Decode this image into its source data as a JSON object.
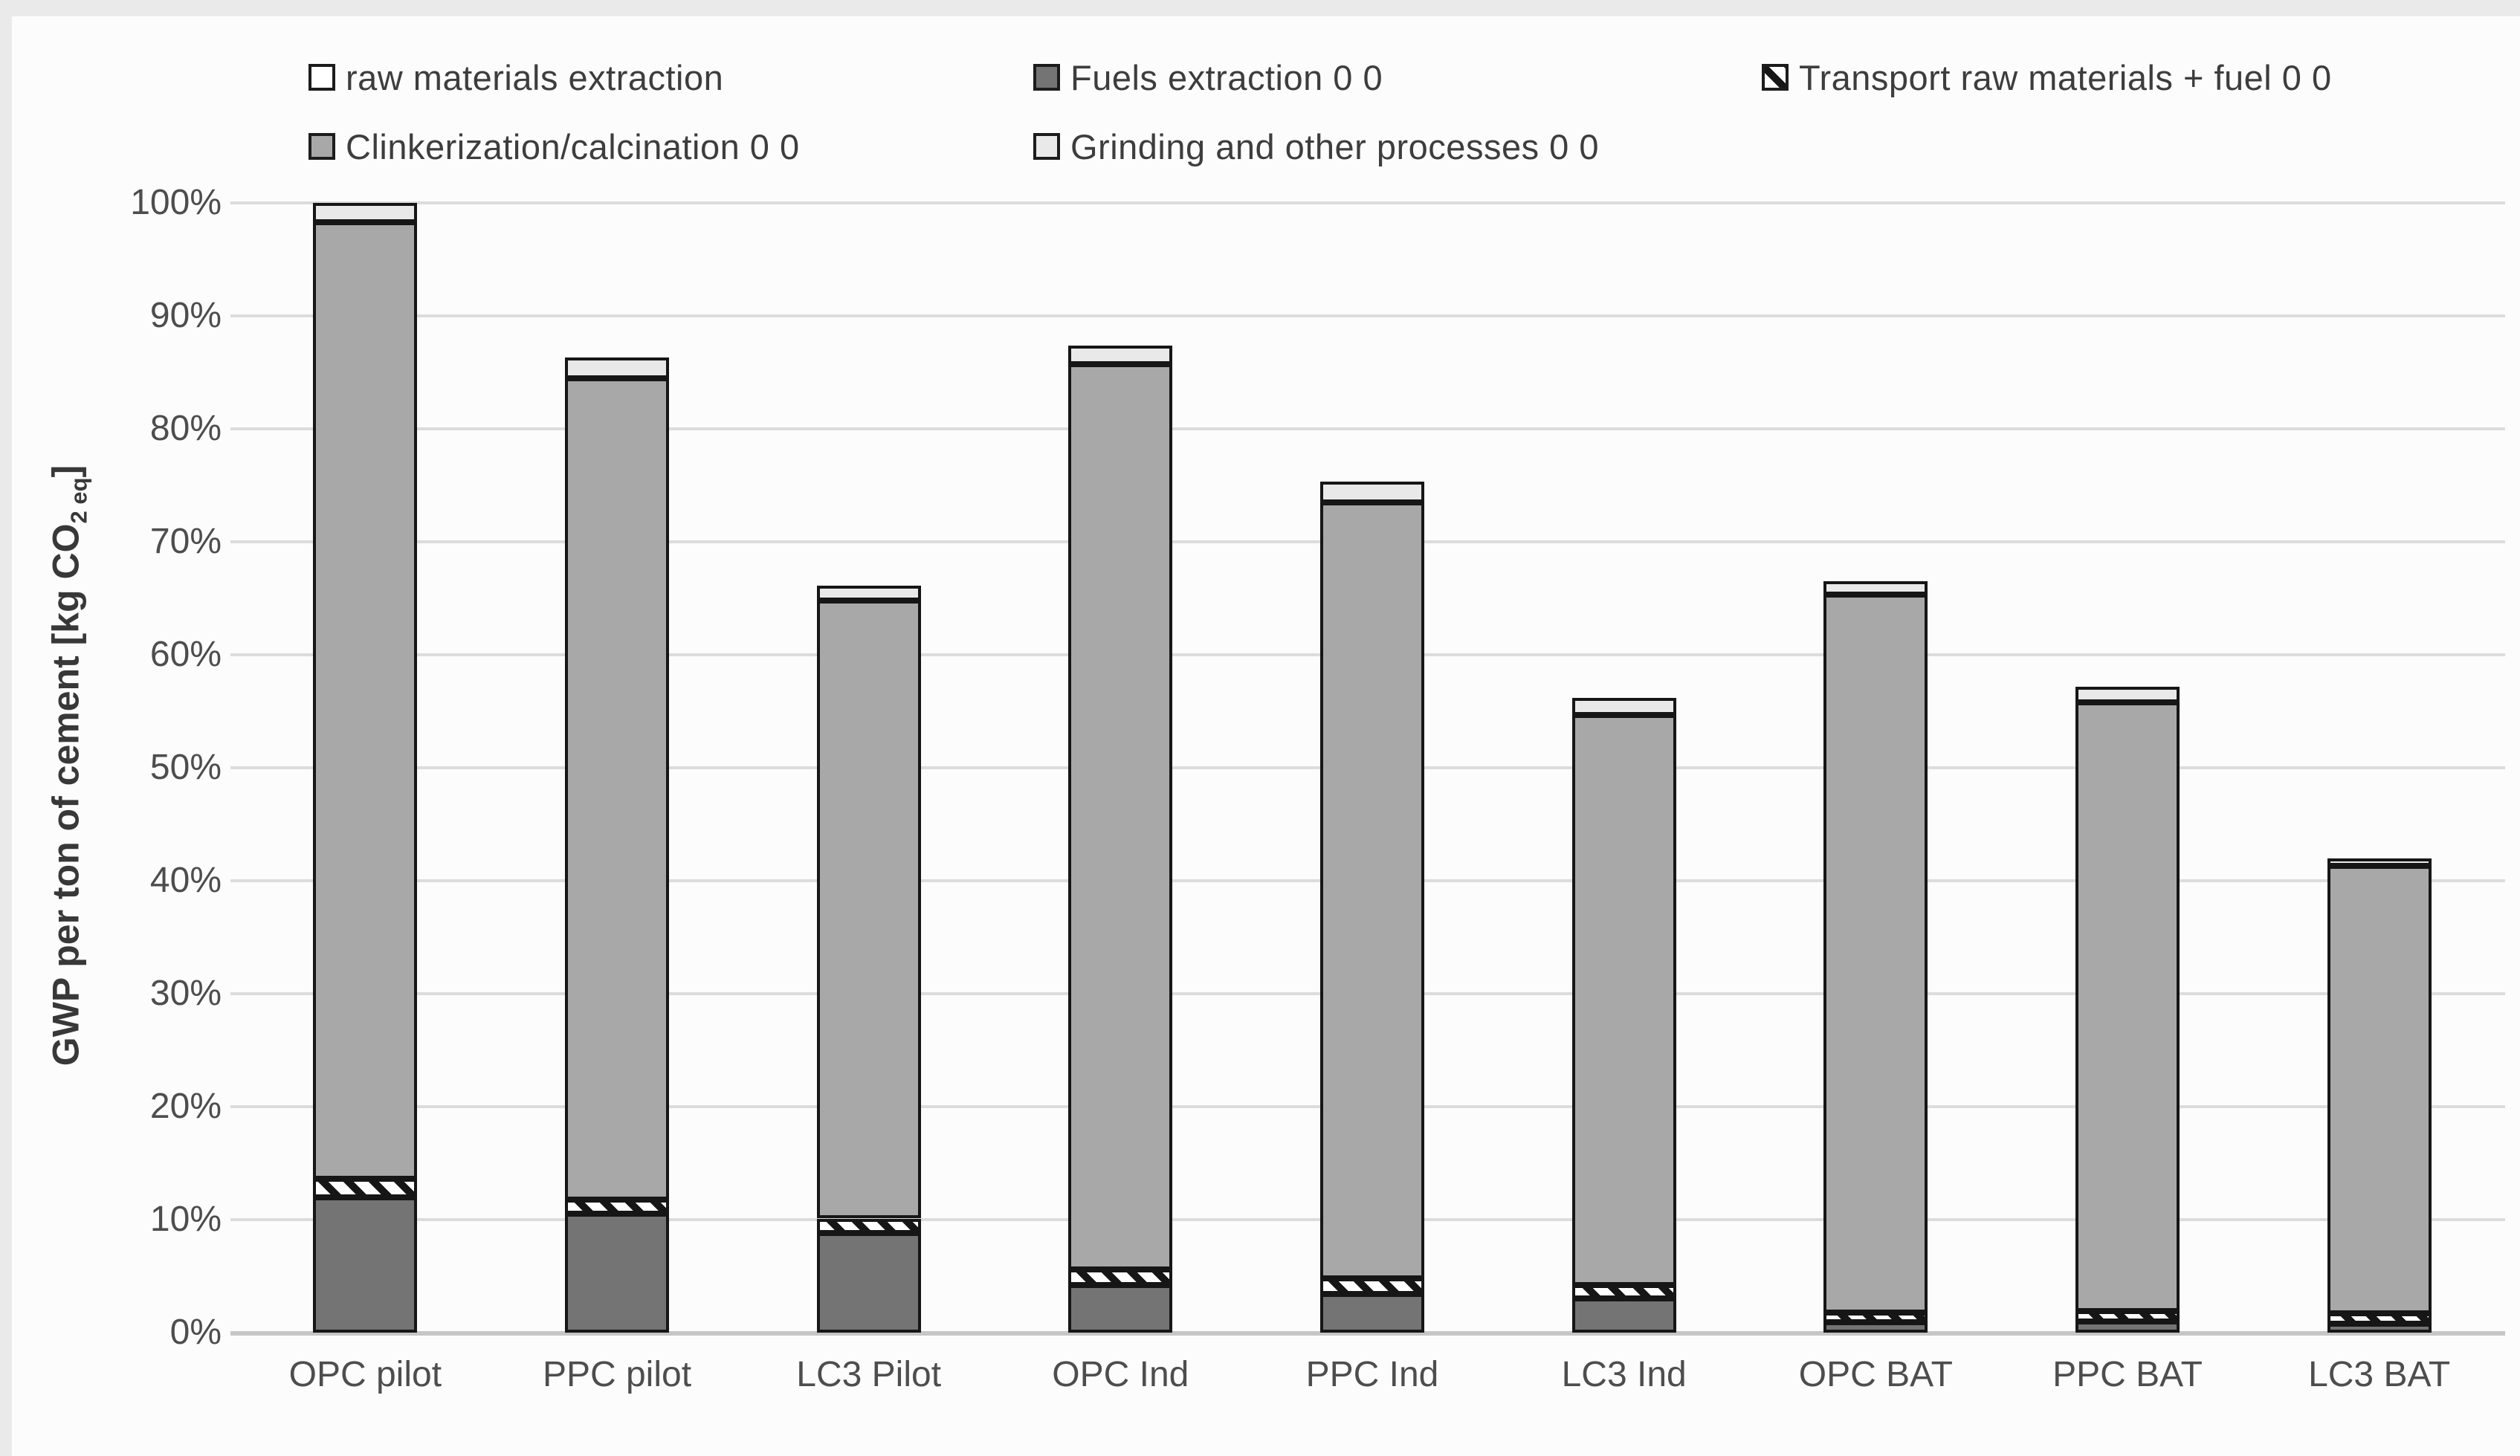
{
  "figure": {
    "background": "#fcfcfc",
    "outline_color": "#161616",
    "gridline_color": "#dcdcdc",
    "baseline_color": "#c6c6c6",
    "tick_text_color": "#4d4d4d",
    "legend_text_color": "#3d3d3d"
  },
  "axis": {
    "y_title_prefix": "GWP per ton of cement [kg CO",
    "y_title_sub": "2 eq",
    "y_title_suffix": "]",
    "y_ticks": [
      "100%",
      "90%",
      "80%",
      "70%",
      "60%",
      "50%",
      "40%",
      "30%",
      "20%",
      "10%",
      "0%"
    ]
  },
  "legend": {
    "rows": [
      72,
      165
    ],
    "cols": [
      415,
      1390,
      2370
    ],
    "items": [
      {
        "label": "raw materials extraction",
        "swatch": "raw",
        "row": 0,
        "col": 0
      },
      {
        "label": "Fuels extraction 0 0",
        "swatch": "fuels",
        "row": 0,
        "col": 1
      },
      {
        "label": "Transport raw materials + fuel 0 0",
        "swatch": "transport",
        "row": 0,
        "col": 2
      },
      {
        "label": "Clinkerization/calcination 0 0",
        "swatch": "clinker",
        "row": 1,
        "col": 0
      },
      {
        "label": "Grinding and other processes 0 0",
        "swatch": "grinding",
        "row": 1,
        "col": 1
      }
    ]
  },
  "chart_data": {
    "type": "bar",
    "stacked": true,
    "title": "",
    "xlabel": "",
    "ylabel": "GWP per ton of cement [kg CO2 eq]",
    "ylim": [
      0,
      100
    ],
    "y_tick_step_percent": 10,
    "grid": true,
    "legend_position": "top",
    "categories": [
      "OPC pilot",
      "PPC pilot",
      "LC3 Pilot",
      "OPC Ind",
      "PPC Ind",
      "LC3 Ind",
      "OPC BAT",
      "PPC BAT",
      "LC3 BAT"
    ],
    "series": [
      {
        "name": "raw materials extraction",
        "swatch": "raw",
        "color": "#ffffff",
        "values": [
          0,
          0,
          0,
          0,
          0,
          0,
          0,
          0,
          0
        ]
      },
      {
        "name": "Fuels extraction 0 0",
        "swatch": "fuels",
        "color": "#747474",
        "values": [
          12.0,
          10.5,
          8.8,
          4.2,
          3.4,
          3.0,
          0.9,
          1.0,
          0.8
        ]
      },
      {
        "name": "Transport raw materials + fuel 0 0",
        "swatch": "transport",
        "color": "hatch-black-white-45deg",
        "values": [
          1.6,
          1.3,
          1.3,
          1.4,
          1.4,
          1.2,
          0.9,
          0.9,
          0.9
        ]
      },
      {
        "name": "Clinkerization/calcination 0 0",
        "swatch": "clinker",
        "color": "#a8a8a8",
        "values": [
          84.7,
          72.7,
          54.7,
          80.1,
          68.7,
          50.5,
          63.5,
          53.9,
          39.6
        ]
      },
      {
        "name": "Grinding and other processes 0 0",
        "swatch": "grinding",
        "color": "#e9e9e9",
        "values": [
          1.7,
          1.8,
          1.3,
          1.7,
          1.8,
          1.5,
          1.2,
          1.4,
          0.7
        ]
      }
    ],
    "stack_totals_percent": [
      100.0,
      86.3,
      66.1,
      87.4,
      75.3,
      56.2,
      66.5,
      57.2,
      42.0
    ]
  }
}
